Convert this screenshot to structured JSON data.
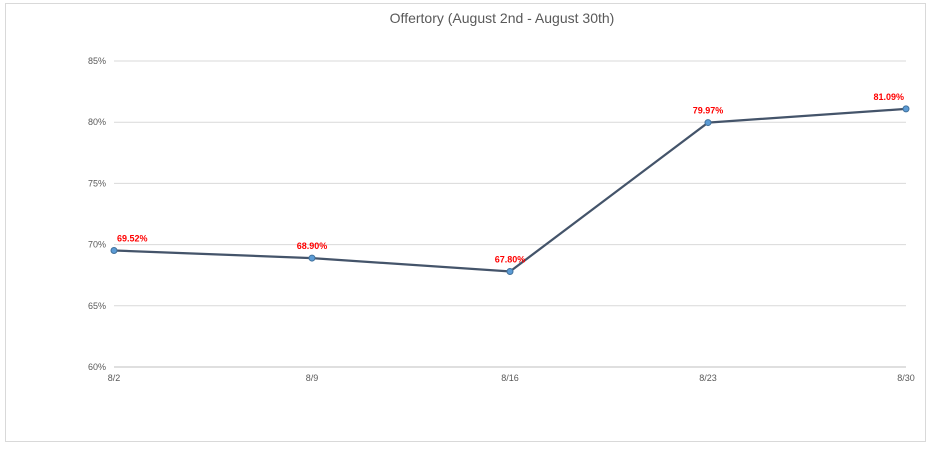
{
  "chart_data": {
    "type": "line",
    "title": "Offertory (August 2nd - August 30th)",
    "xlabel": "",
    "ylabel": "",
    "categories": [
      "8/2",
      "8/9",
      "8/16",
      "8/23",
      "8/30"
    ],
    "series": [
      {
        "values": [
          69.52,
          68.9,
          67.8,
          79.97,
          81.09
        ],
        "labels": [
          "69.52%",
          "68.90%",
          "67.80%",
          "79.97%",
          "81.09%"
        ]
      }
    ],
    "ylim": [
      60,
      85
    ],
    "yticks": [
      60,
      65,
      70,
      75,
      80,
      85
    ],
    "ytick_labels": [
      "60%",
      "65%",
      "70%",
      "75%",
      "80%",
      "85%"
    ],
    "grid": true,
    "legend": "none",
    "colors": {
      "line": "#44546a",
      "marker_fill": "#5b9bd5",
      "marker_stroke": "#41719c",
      "data_label": "#ff0000",
      "gridline": "#d9d9d9",
      "axis": "#bfbfbf"
    }
  }
}
